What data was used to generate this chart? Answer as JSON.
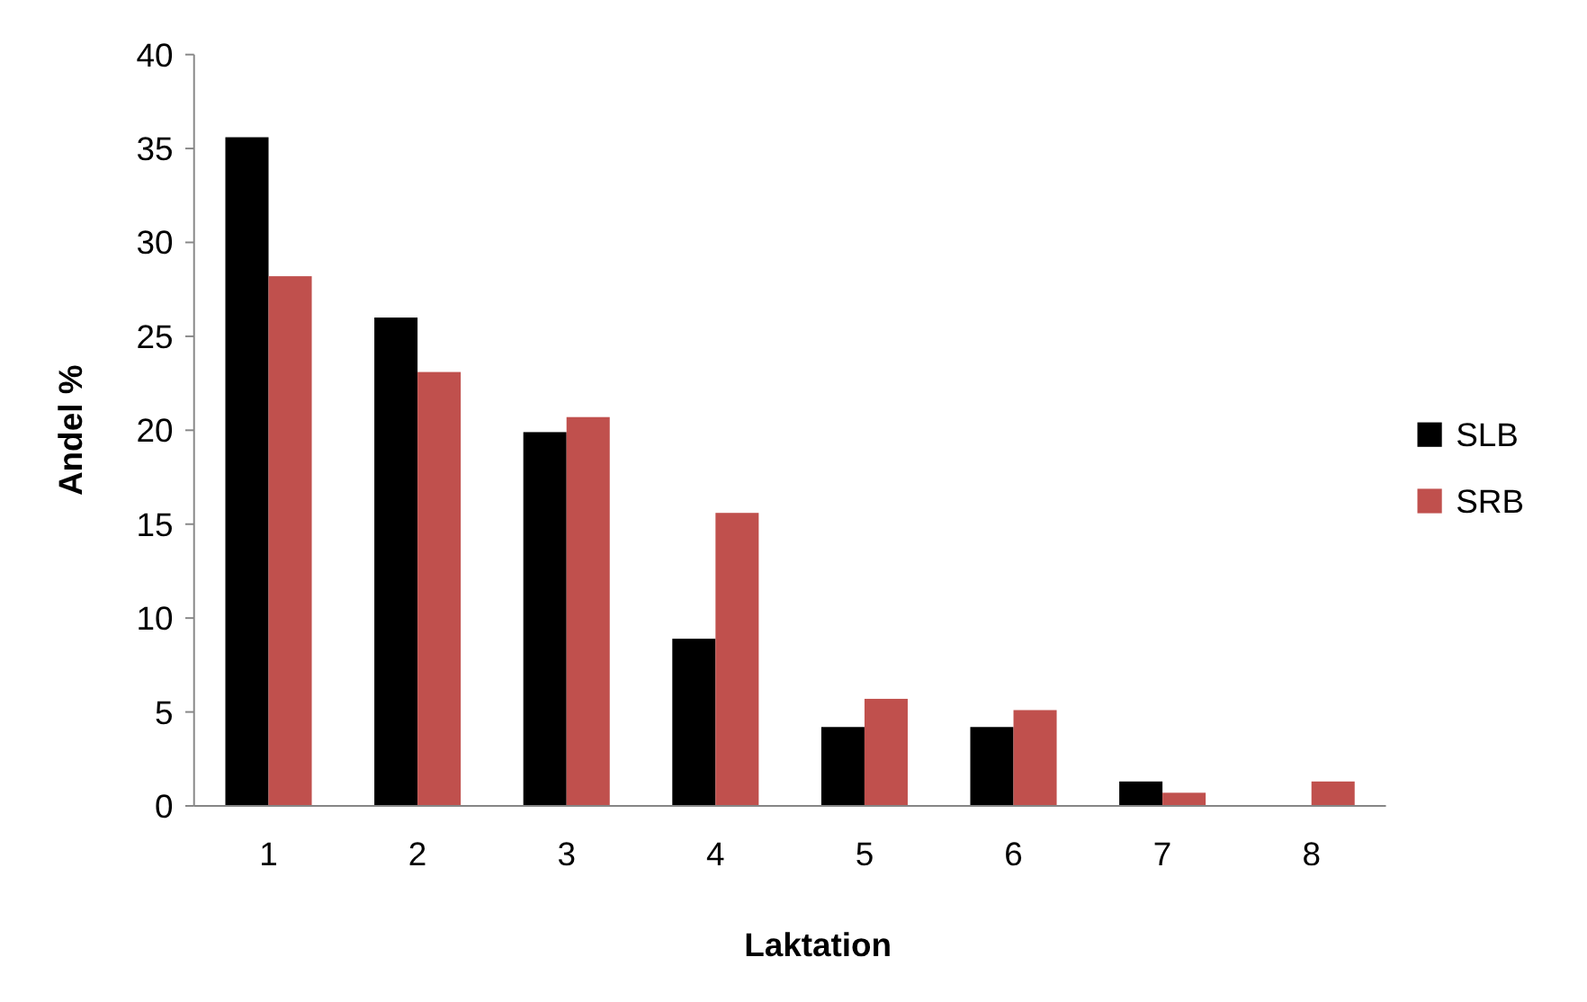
{
  "chart_data": {
    "type": "bar",
    "xlabel": "Laktation",
    "ylabel": "Andel %",
    "categories": [
      "1",
      "2",
      "3",
      "4",
      "5",
      "6",
      "7",
      "8"
    ],
    "series": [
      {
        "name": "SLB",
        "color": "#000000",
        "values": [
          35.6,
          26.0,
          19.9,
          8.9,
          4.2,
          4.2,
          1.3,
          0
        ]
      },
      {
        "name": "SRB",
        "color": "#c0504d",
        "values": [
          28.2,
          23.1,
          20.7,
          15.6,
          5.7,
          5.1,
          0.7,
          1.3
        ]
      }
    ],
    "ylim": [
      0,
      40
    ],
    "yticks": [
      0,
      5,
      10,
      15,
      20,
      25,
      30,
      35,
      40
    ],
    "grid": false,
    "legend": "right"
  }
}
